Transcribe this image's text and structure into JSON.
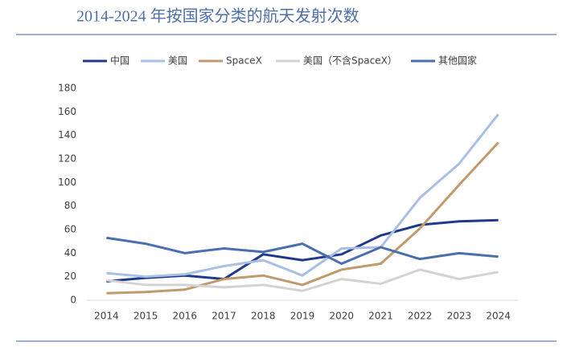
{
  "chart_data": {
    "type": "line",
    "title": "2014-2024 年按国家分类的航天发射次数",
    "categories": [
      "2014",
      "2015",
      "2016",
      "2017",
      "2018",
      "2019",
      "2020",
      "2021",
      "2022",
      "2023",
      "2024"
    ],
    "series": [
      {
        "name": "中国",
        "color": "#1f3a8a",
        "values": [
          16,
          19,
          21,
          18,
          39,
          34,
          39,
          55,
          64,
          67,
          68
        ]
      },
      {
        "name": "美国",
        "color": "#a9bfe5",
        "values": [
          23,
          20,
          22,
          29,
          34,
          21,
          44,
          45,
          87,
          116,
          158
        ]
      },
      {
        "name": "SpaceX",
        "color": "#c09a6b",
        "values": [
          6,
          7,
          9,
          18,
          21,
          13,
          26,
          31,
          61,
          98,
          134
        ]
      },
      {
        "name": "美国（不含SpaceX）",
        "color": "#d3d3d3",
        "values": [
          17,
          13,
          13,
          11,
          13,
          8,
          18,
          14,
          26,
          18,
          24
        ]
      },
      {
        "name": "其他国家",
        "color": "#4a6fb0",
        "values": [
          53,
          48,
          40,
          44,
          41,
          48,
          31,
          45,
          35,
          40,
          37
        ]
      }
    ],
    "ylim": [
      0,
      180
    ],
    "yticks": [
      0,
      20,
      40,
      60,
      80,
      100,
      120,
      140,
      160,
      180
    ],
    "grid": false,
    "legend": "top"
  }
}
